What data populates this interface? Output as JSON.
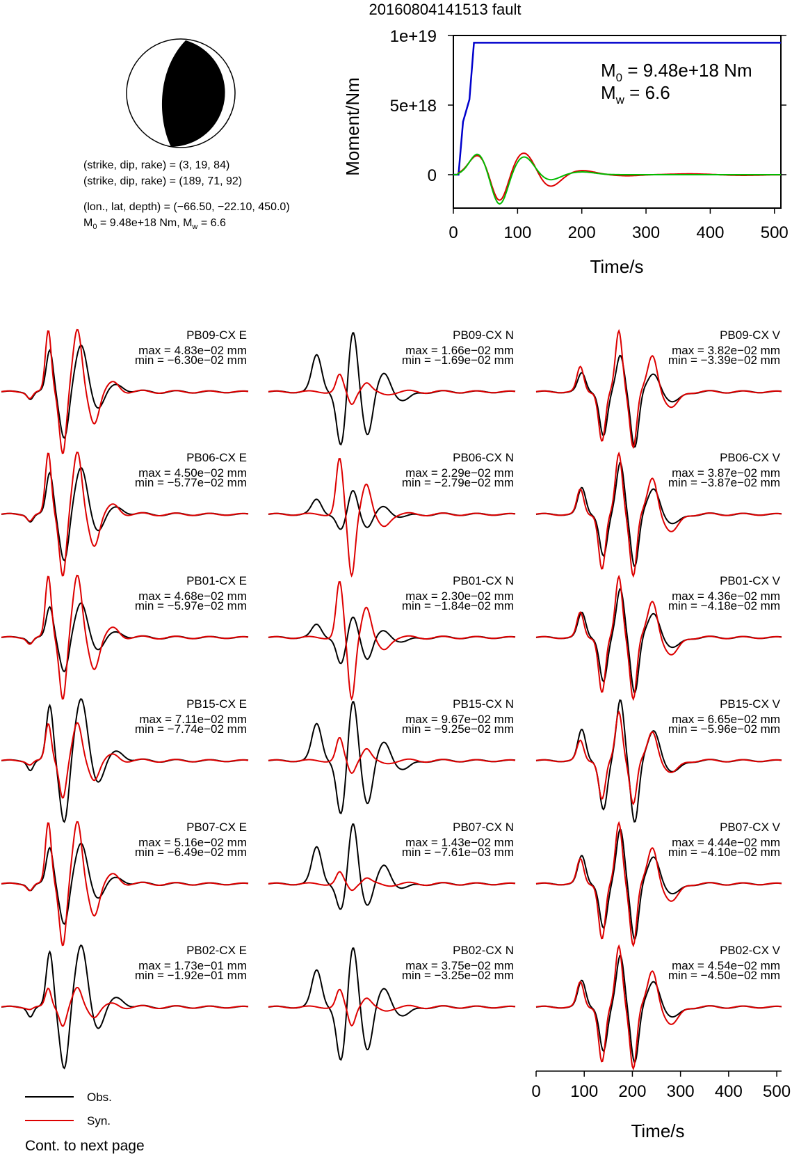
{
  "title": "20160804141513 fault",
  "beachball": {
    "strike": 3,
    "dip": 19,
    "rake": 84
  },
  "mechanism_lines": [
    "(strike, dip, rake) = (3, 19, 84)",
    "(strike, dip, rake) = (189, 71, 92)",
    "(lon., lat, depth) = (−66.50, −22.10, 450.0)"
  ],
  "moment_line": {
    "m0": "9.48e+18 Nm",
    "mw": "6.6"
  },
  "moment_chart": {
    "type": "line",
    "xlabel": "Time/s",
    "ylabel": "Moment/Nm",
    "xlim": [
      0,
      510
    ],
    "ylim": [
      -2.4e+18,
      1e+19
    ],
    "xticks": [
      "0",
      "100",
      "200",
      "300",
      "400",
      "500"
    ],
    "yticks": [
      "0",
      "5e+18",
      "1e+19"
    ],
    "annotation_m0": "9.48e+18 Nm",
    "annotation_mw": "6.6",
    "cumulative": {
      "color": "#0000cc",
      "t": [
        0,
        8,
        15,
        25,
        32,
        510
      ],
      "m": [
        0,
        0,
        3.8e+18,
        5.4e+18,
        9.48e+18,
        9.48e+18
      ]
    },
    "rate_red": {
      "color": "#dd0000",
      "peaks": [
        [
          38,
          1.4e+18,
          14
        ],
        [
          72,
          -2e+18,
          12
        ],
        [
          110,
          1.6e+18,
          16
        ],
        [
          150,
          -9e+17,
          16
        ],
        [
          200,
          3e+17,
          20
        ],
        [
          270,
          -8e+16,
          20
        ],
        [
          370,
          6e+16,
          30
        ],
        [
          450,
          -5e+16,
          30
        ]
      ]
    },
    "rate_green": {
      "color": "#00bb00",
      "peaks": [
        [
          38,
          1.5e+18,
          13
        ],
        [
          72,
          -2.2e+18,
          12
        ],
        [
          110,
          1.3e+18,
          15
        ],
        [
          150,
          -4e+17,
          15
        ],
        [
          200,
          2e+17,
          20
        ]
      ]
    }
  },
  "chart_data": [
    {
      "type": "line",
      "name": "moment",
      "xlabel": "Time/s",
      "ylabel": "Moment/Nm",
      "x_range": [
        0,
        510
      ],
      "cumulative_moment": {
        "x": [
          0,
          8,
          15,
          25,
          32,
          510
        ],
        "y": [
          0,
          0,
          3.8e+18,
          5.4e+18,
          9.48e+18,
          9.48e+18
        ]
      },
      "total_moment": 9.48e+18,
      "mw": 6.6
    },
    {
      "type": "line",
      "name": "waveforms",
      "xlabel": "Time/s",
      "x_range": [
        0,
        510
      ],
      "stations": [
        {
          "label": "PB09-CX E",
          "max": "max = 4.83e−02 mm",
          "min": "min = −6.30e−02 mm"
        },
        {
          "label": "PB09-CX N",
          "max": "max = 1.66e−02 mm",
          "min": "min = −1.69e−02 mm"
        },
        {
          "label": "PB09-CX V",
          "max": "max = 3.82e−02 mm",
          "min": "min = −3.39e−02 mm"
        },
        {
          "label": "PB06-CX E",
          "max": "max = 4.50e−02 mm",
          "min": "min = −5.77e−02 mm"
        },
        {
          "label": "PB06-CX N",
          "max": "max = 2.29e−02 mm",
          "min": "min = −2.79e−02 mm"
        },
        {
          "label": "PB06-CX V",
          "max": "max = 3.87e−02 mm",
          "min": "min = −3.87e−02 mm"
        },
        {
          "label": "PB01-CX E",
          "max": "max = 4.68e−02 mm",
          "min": "min = −5.97e−02 mm"
        },
        {
          "label": "PB01-CX N",
          "max": "max = 2.30e−02 mm",
          "min": "min = −1.84e−02 mm"
        },
        {
          "label": "PB01-CX V",
          "max": "max = 4.36e−02 mm",
          "min": "min = −4.18e−02 mm"
        },
        {
          "label": "PB15-CX E",
          "max": "max = 7.11e−02 mm",
          "min": "min = −7.74e−02 mm"
        },
        {
          "label": "PB15-CX N",
          "max": "max = 9.67e−02 mm",
          "min": "min = −9.25e−02 mm"
        },
        {
          "label": "PB15-CX V",
          "max": "max = 6.65e−02 mm",
          "min": "min = −5.96e−02 mm"
        },
        {
          "label": "PB07-CX E",
          "max": "max = 5.16e−02 mm",
          "min": "min = −6.49e−02 mm"
        },
        {
          "label": "PB07-CX N",
          "max": "max = 1.43e−02 mm",
          "min": "min = −7.61e−03 mm"
        },
        {
          "label": "PB07-CX V",
          "max": "max = 4.44e−02 mm",
          "min": "min = −4.10e−02 mm"
        },
        {
          "label": "PB02-CX E",
          "max": "max = 1.73e−01 mm",
          "min": "min = −1.92e−01 mm"
        },
        {
          "label": "PB02-CX N",
          "max": "max = 3.75e−02 mm",
          "min": "min = −3.25e−02 mm"
        },
        {
          "label": "PB02-CX V",
          "max": "max = 4.54e−02 mm",
          "min": "min = −4.50e−02 mm"
        }
      ]
    }
  ],
  "waveforms": {
    "x_range": [
      0,
      510
    ],
    "xticks": [
      "0",
      "100",
      "200",
      "300",
      "400",
      "500"
    ],
    "xlabel": "Time/s",
    "obs_color": "#000000",
    "syn_color": "#dd0000",
    "shapes": {
      "E": {
        "obs": [
          [
            100,
            0.9,
            7
          ],
          [
            130,
            -1.0,
            9
          ],
          [
            165,
            1.0,
            12
          ],
          [
            200,
            -0.35,
            12
          ],
          [
            240,
            0.15,
            15
          ],
          [
            60,
            -0.15,
            6
          ]
        ],
        "syn": [
          [
            100,
            1.0,
            6
          ],
          [
            130,
            -1.0,
            7
          ],
          [
            160,
            1.0,
            9
          ],
          [
            195,
            -0.5,
            10
          ],
          [
            235,
            0.15,
            12
          ],
          [
            62,
            -0.1,
            6
          ]
        ]
      },
      "N": {
        "obs": [
          [
            100,
            0.6,
            10
          ],
          [
            150,
            -0.9,
            9
          ],
          [
            175,
            1.0,
            9
          ],
          [
            205,
            -0.7,
            10
          ],
          [
            240,
            0.3,
            12
          ],
          [
            280,
            -0.15,
            15
          ]
        ],
        "syn": [
          [
            150,
            0.9,
            7
          ],
          [
            175,
            -1.0,
            7
          ],
          [
            205,
            0.5,
            9
          ],
          [
            240,
            -0.2,
            12
          ]
        ]
      },
      "V": {
        "obs": [
          [
            95,
            0.5,
            8
          ],
          [
            140,
            -0.8,
            8
          ],
          [
            175,
            1.0,
            8
          ],
          [
            205,
            -1.0,
            8
          ],
          [
            245,
            0.5,
            12
          ],
          [
            285,
            -0.2,
            15
          ]
        ],
        "syn": [
          [
            95,
            0.4,
            7
          ],
          [
            140,
            -0.9,
            7
          ],
          [
            175,
            1.0,
            7
          ],
          [
            205,
            -1.0,
            7
          ],
          [
            245,
            0.6,
            10
          ],
          [
            285,
            -0.3,
            14
          ]
        ]
      }
    },
    "rows_obs_scale": [
      {
        "E": [
          0.75,
          0.75
        ],
        "N": [
          1.0,
          1.0
        ],
        "V": [
          0.6,
          0.9
        ]
      },
      {
        "E": [
          0.75,
          0.75
        ],
        "N": [
          0.4,
          0.3
        ],
        "V": [
          0.85,
          0.85
        ]
      },
      {
        "E": [
          0.55,
          0.55
        ],
        "N": [
          0.35,
          0.5
        ],
        "V": [
          0.8,
          0.9
        ]
      },
      {
        "E": [
          1.0,
          1.0
        ],
        "N": [
          1.0,
          1.0
        ],
        "V": [
          1.0,
          1.0
        ]
      },
      {
        "E": [
          0.65,
          0.65
        ],
        "N": [
          1.0,
          0.5
        ],
        "V": [
          0.9,
          0.9
        ]
      },
      {
        "E": [
          1.0,
          1.0
        ],
        "N": [
          1.0,
          1.0
        ],
        "V": [
          0.85,
          0.9
        ]
      }
    ],
    "rows_syn_scale": [
      {
        "E": [
          1.0,
          1.0
        ],
        "N": [
          0.3,
          0.2
        ],
        "V": [
          1.0,
          0.9
        ]
      },
      {
        "E": [
          1.0,
          1.0
        ],
        "N": [
          1.0,
          1.0
        ],
        "V": [
          1.0,
          1.0
        ]
      },
      {
        "E": [
          1.0,
          1.0
        ],
        "N": [
          1.0,
          1.0
        ],
        "V": [
          1.0,
          1.0
        ]
      },
      {
        "E": [
          0.6,
          0.6
        ],
        "N": [
          0.4,
          0.2
        ],
        "V": [
          0.8,
          0.7
        ]
      },
      {
        "E": [
          1.0,
          1.0
        ],
        "N": [
          0.2,
          0.1
        ],
        "V": [
          1.0,
          1.0
        ]
      },
      {
        "E": [
          0.3,
          0.3
        ],
        "N": [
          0.3,
          0.3
        ],
        "V": [
          1.0,
          1.0
        ]
      }
    ]
  },
  "legend": {
    "obs": "Obs.",
    "syn": "Syn."
  },
  "footer": "Cont. to next page"
}
